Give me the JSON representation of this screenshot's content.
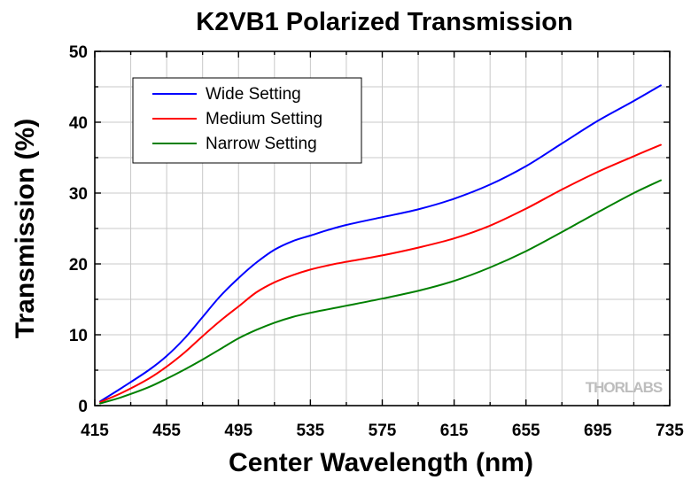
{
  "chart_data": {
    "type": "line",
    "title": "K2VB1 Polarized Transmission",
    "xlabel": "Center Wavelength (nm)",
    "ylabel": "Transmission (%)",
    "xlim": [
      415,
      735
    ],
    "ylim": [
      0,
      50
    ],
    "xticks": [
      "415",
      "455",
      "495",
      "535",
      "575",
      "615",
      "655",
      "695",
      "735"
    ],
    "yticks": [
      "0",
      "10",
      "20",
      "30",
      "40",
      "50"
    ],
    "grid": true,
    "legend_position": "top-left",
    "watermark": "THORLABS",
    "series": [
      {
        "name": "Wide Setting",
        "color": "#0000ff",
        "x": [
          418,
          430,
          445,
          455,
          465,
          475,
          485,
          495,
          505,
          515,
          525,
          535,
          545,
          555,
          575,
          595,
          615,
          635,
          655,
          675,
          695,
          715,
          730
        ],
        "y": [
          0.6,
          2.5,
          5.0,
          7.0,
          9.5,
          12.5,
          15.5,
          18.0,
          20.2,
          22.0,
          23.2,
          24.0,
          24.8,
          25.5,
          26.6,
          27.7,
          29.2,
          31.2,
          33.8,
          37.0,
          40.2,
          43.0,
          45.2
        ]
      },
      {
        "name": "Medium Setting",
        "color": "#ff0000",
        "x": [
          418,
          430,
          445,
          455,
          465,
          475,
          485,
          495,
          505,
          515,
          525,
          535,
          545,
          555,
          575,
          595,
          615,
          635,
          655,
          675,
          695,
          715,
          730
        ],
        "y": [
          0.5,
          1.8,
          3.8,
          5.5,
          7.5,
          9.8,
          12.0,
          14.0,
          16.0,
          17.4,
          18.4,
          19.2,
          19.8,
          20.3,
          21.2,
          22.3,
          23.6,
          25.4,
          27.8,
          30.5,
          33.0,
          35.2,
          36.8
        ]
      },
      {
        "name": "Narrow Setting",
        "color": "#008000",
        "x": [
          418,
          430,
          445,
          455,
          465,
          475,
          485,
          495,
          505,
          515,
          525,
          535,
          545,
          555,
          575,
          595,
          615,
          635,
          655,
          675,
          695,
          715,
          730
        ],
        "y": [
          0.3,
          1.2,
          2.6,
          3.8,
          5.1,
          6.5,
          8.0,
          9.5,
          10.7,
          11.7,
          12.5,
          13.1,
          13.6,
          14.1,
          15.1,
          16.2,
          17.6,
          19.5,
          21.8,
          24.5,
          27.3,
          30.0,
          31.8
        ]
      }
    ]
  }
}
